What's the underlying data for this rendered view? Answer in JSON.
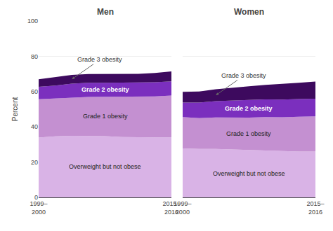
{
  "chart_data": [
    {
      "type": "area",
      "stacked": true,
      "title": "Men",
      "ylabel": "Percent",
      "categories": [
        "1999–\n2000",
        null,
        null,
        null,
        null,
        null,
        null,
        null,
        "2015–\n2016"
      ],
      "ylim": [
        0,
        100
      ],
      "yticks": [
        0,
        20,
        40,
        60,
        80,
        100
      ],
      "grid": true,
      "series": [
        {
          "name": "Overweight but not obese",
          "color": "#d9b3e6",
          "values": [
            33.91,
            34.62,
            34.97,
            34.98,
            34.75,
            34.25,
            34.02,
            34.0,
            34
          ]
        },
        {
          "name": "Grade 1 obesity",
          "color": "#c490d1",
          "values": [
            21.75,
            21.5,
            21.77,
            22.0,
            22.25,
            22.75,
            23.0,
            23.25,
            23.73
          ]
        },
        {
          "name": "Grade 2 obesity",
          "color": "#7b2fbe",
          "values": [
            7.02,
            7.25,
            7.75,
            7.98,
            8.0,
            8,
            8,
            8,
            8
          ]
        },
        {
          "name": "Grade 3 obesity",
          "color": "#3d0a5e",
          "values": [
            4.27,
            4.75,
            4.98,
            5.0,
            5,
            5.0,
            5.02,
            5.25,
            5.75
          ]
        }
      ]
    },
    {
      "type": "area",
      "stacked": true,
      "title": "Women",
      "tick_labels": "x",
      "categories": [
        "1999–\n2000",
        null,
        null,
        null,
        null,
        null,
        null,
        null,
        "2015–\n2016"
      ],
      "ylim": [
        0,
        100
      ],
      "yticks": [
        0,
        20,
        40,
        60,
        80,
        100
      ],
      "grid": true,
      "series": [
        {
          "name": "Overweight but not obese",
          "color": "#d9b3e6",
          "values": [
            27.75,
            27.48,
            27.52,
            27.23,
            27.0,
            26.75,
            26.25,
            26.02,
            26.0
          ]
        },
        {
          "name": "Grade 1 obesity",
          "color": "#c490d1",
          "values": [
            17.75,
            17.5,
            17.77,
            18.0,
            18.25,
            18.77,
            19.23,
            19.75,
            19.98
          ]
        },
        {
          "name": "Grade 2 obesity",
          "color": "#7b2fbe",
          "values": [
            8.27,
            8.77,
            9.23,
            9.75,
            9.98,
            10.0,
            10,
            10,
            10
          ]
        },
        {
          "name": "Grade 3 obesity",
          "color": "#3d0a5e",
          "values": [
            6.02,
            6.25,
            6.77,
            7.23,
            7.77,
            8.23,
            8.77,
            9.23,
            9.73
          ]
        }
      ]
    }
  ]
}
